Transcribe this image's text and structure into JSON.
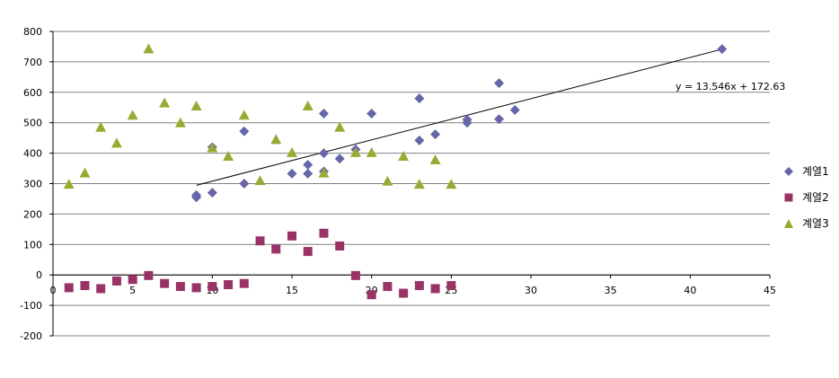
{
  "chart_data": {
    "type": "scatter",
    "title": "",
    "xlabel": "",
    "ylabel": "",
    "xlim": [
      0,
      45
    ],
    "ylim": [
      -200,
      800
    ],
    "x_ticks": [
      0,
      5,
      10,
      15,
      20,
      25,
      30,
      35,
      40,
      45
    ],
    "y_ticks": [
      -200,
      -100,
      0,
      100,
      200,
      300,
      400,
      500,
      600,
      700,
      800
    ],
    "grid": "horizontal",
    "legend_position": "right",
    "series": [
      {
        "name": "계열1",
        "marker": "diamond",
        "color": "#6666a8",
        "points": [
          [
            9,
            255
          ],
          [
            9,
            262
          ],
          [
            10,
            420
          ],
          [
            10,
            270
          ],
          [
            12,
            300
          ],
          [
            12,
            472
          ],
          [
            15,
            333
          ],
          [
            16,
            362
          ],
          [
            16,
            333
          ],
          [
            17,
            530
          ],
          [
            17,
            400
          ],
          [
            17,
            340
          ],
          [
            18,
            382
          ],
          [
            19,
            412
          ],
          [
            20,
            530
          ],
          [
            23,
            580
          ],
          [
            23,
            442
          ],
          [
            24,
            462
          ],
          [
            26,
            500
          ],
          [
            26,
            510
          ],
          [
            28,
            630
          ],
          [
            28,
            512
          ],
          [
            29,
            542
          ],
          [
            42,
            742
          ]
        ]
      },
      {
        "name": "계열2",
        "marker": "square",
        "color": "#993366",
        "points": [
          [
            1,
            -42
          ],
          [
            2,
            -35
          ],
          [
            3,
            -45
          ],
          [
            4,
            -20
          ],
          [
            5,
            -15
          ],
          [
            6,
            -2
          ],
          [
            7,
            -28
          ],
          [
            8,
            -38
          ],
          [
            9,
            -42
          ],
          [
            10,
            -38
          ],
          [
            11,
            -32
          ],
          [
            12,
            -28
          ],
          [
            13,
            112
          ],
          [
            14,
            85
          ],
          [
            15,
            128
          ],
          [
            16,
            77
          ],
          [
            17,
            137
          ],
          [
            18,
            95
          ],
          [
            19,
            -2
          ],
          [
            20,
            -65
          ],
          [
            21,
            -38
          ],
          [
            22,
            -60
          ],
          [
            23,
            -35
          ],
          [
            24,
            -45
          ],
          [
            25,
            -35
          ]
        ]
      },
      {
        "name": "계열3",
        "marker": "triangle",
        "color": "#99aa33",
        "points": [
          [
            1,
            298
          ],
          [
            2,
            335
          ],
          [
            3,
            485
          ],
          [
            4,
            433
          ],
          [
            5,
            525
          ],
          [
            6,
            743
          ],
          [
            7,
            565
          ],
          [
            8,
            500
          ],
          [
            9,
            555
          ],
          [
            10,
            418
          ],
          [
            11,
            390
          ],
          [
            12,
            525
          ],
          [
            13,
            310
          ],
          [
            14,
            445
          ],
          [
            15,
            402
          ],
          [
            16,
            555
          ],
          [
            17,
            335
          ],
          [
            18,
            485
          ],
          [
            19,
            402
          ],
          [
            20,
            402
          ],
          [
            21,
            308
          ],
          [
            22,
            390
          ],
          [
            23,
            298
          ],
          [
            24,
            378
          ],
          [
            25,
            298
          ]
        ]
      }
    ],
    "trendline": {
      "series": "계열1",
      "type": "linear",
      "x_range": [
        9,
        42
      ],
      "slope": 13.546,
      "intercept": 172.63,
      "equation": "y = 13.546x + 172.63"
    }
  }
}
